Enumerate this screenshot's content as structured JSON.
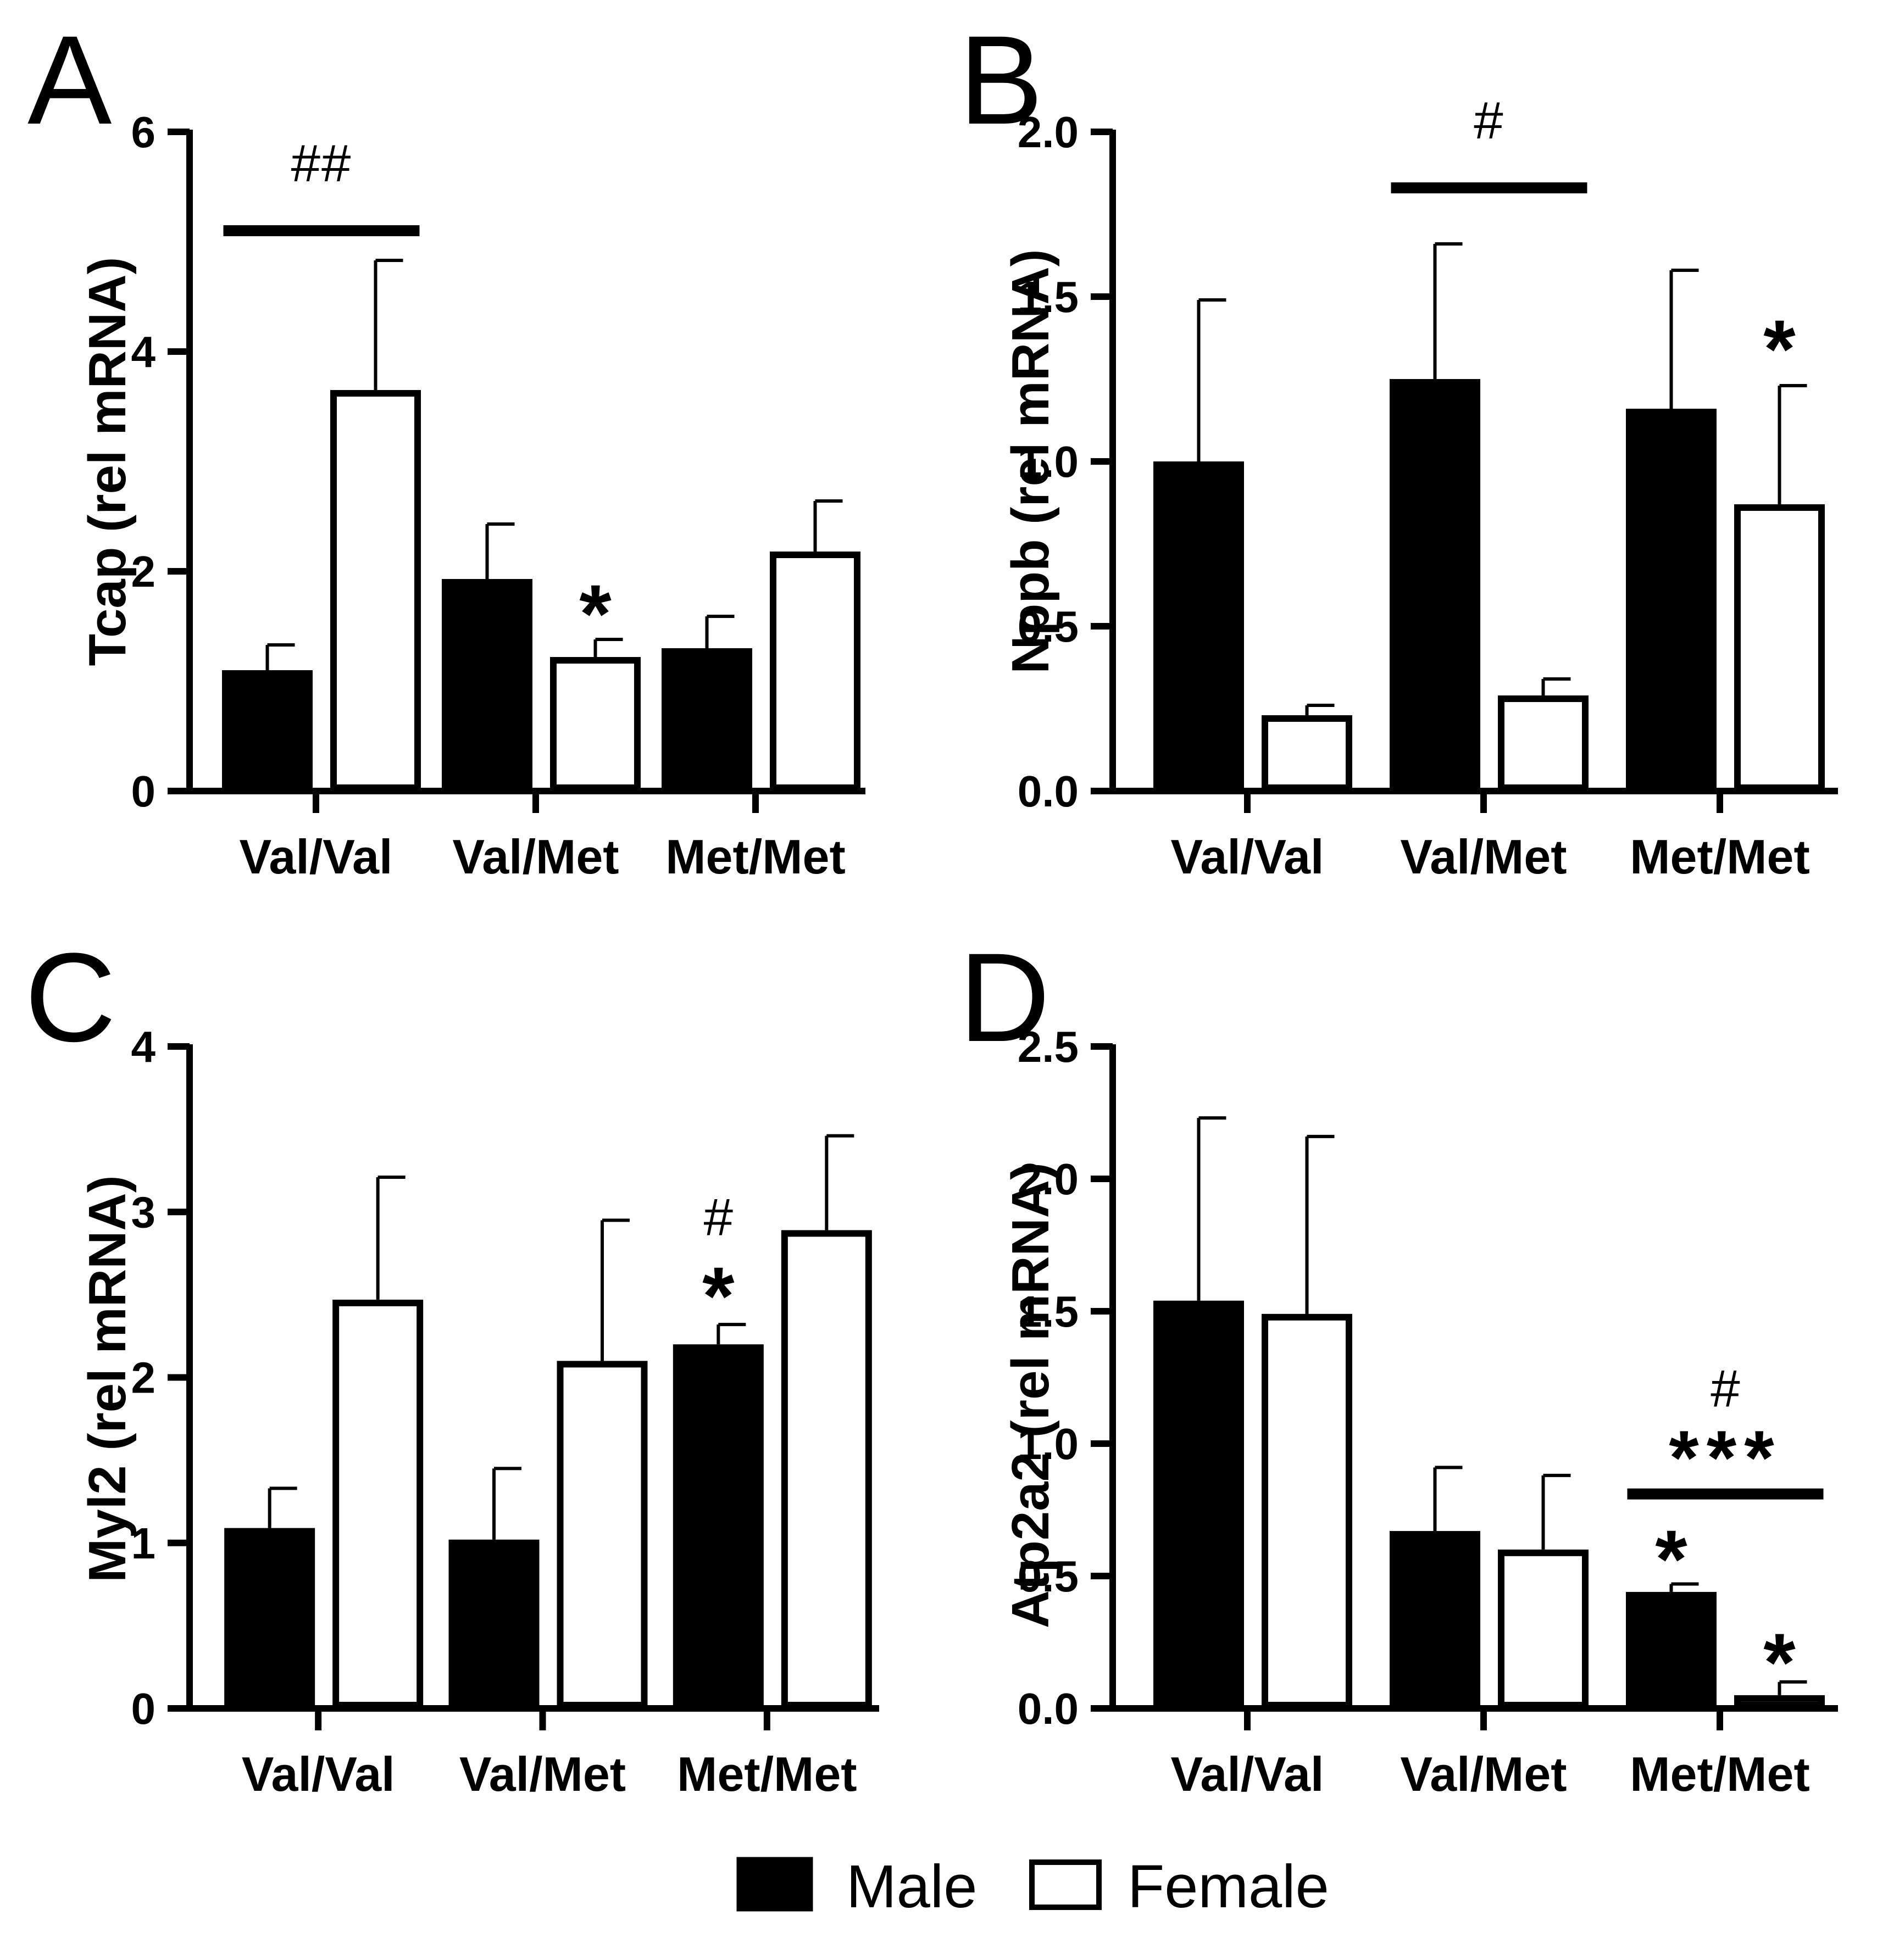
{
  "chart_data": [
    {
      "panel": "A",
      "type": "bar",
      "ylabel": "Tcap (rel mRNA)",
      "ylim": [
        0,
        6
      ],
      "yticks": [
        0,
        2,
        4,
        6
      ],
      "ytick_labels": [
        "0",
        "2",
        "4",
        "6"
      ],
      "categories": [
        "Val/Val",
        "Val/Met",
        "Met/Met"
      ],
      "series": [
        {
          "name": "Male",
          "values": [
            1.1,
            1.93,
            1.3
          ],
          "errors": [
            0.23,
            0.5,
            0.29
          ]
        },
        {
          "name": "Female",
          "values": [
            3.65,
            1.22,
            2.18
          ],
          "errors": [
            1.18,
            0.16,
            0.46
          ]
        }
      ],
      "annotations": [
        {
          "type": "bracket",
          "text": "##",
          "from": [
            0,
            0
          ],
          "to": [
            0,
            1
          ],
          "y": 5.1,
          "text_y": 5.55
        },
        {
          "type": "star",
          "text": "*",
          "category": 1,
          "series": 1,
          "y": 1.58
        }
      ]
    },
    {
      "panel": "B",
      "type": "bar",
      "ylabel": "Nppb (rel mRNA)",
      "ylim": [
        0,
        2.0
      ],
      "yticks": [
        0,
        0.5,
        1.0,
        1.5,
        2.0
      ],
      "ytick_labels": [
        "0.0",
        "0.5",
        "1.0",
        "1.5",
        "2.0"
      ],
      "categories": [
        "Val/Val",
        "Val/Met",
        "Met/Met"
      ],
      "series": [
        {
          "name": "Male",
          "values": [
            1.0,
            1.25,
            1.16
          ],
          "errors": [
            0.49,
            0.41,
            0.42
          ]
        },
        {
          "name": "Female",
          "values": [
            0.23,
            0.29,
            0.87
          ],
          "errors": [
            0.03,
            0.05,
            0.36
          ]
        }
      ],
      "annotations": [
        {
          "type": "bracket",
          "text": "#",
          "from": [
            1,
            0
          ],
          "to": [
            1,
            1
          ],
          "y": 1.83,
          "text_y": 1.98
        },
        {
          "type": "star",
          "text": "*",
          "category": 2,
          "series": 1,
          "y": 1.33
        }
      ]
    },
    {
      "panel": "C",
      "type": "bar",
      "ylabel": "Myl2 (rel mRNA)",
      "ylim": [
        0,
        4
      ],
      "yticks": [
        0,
        1,
        2,
        3,
        4
      ],
      "ytick_labels": [
        "0",
        "1",
        "2",
        "3",
        "4"
      ],
      "categories": [
        "Val/Val",
        "Val/Met",
        "Met/Met"
      ],
      "series": [
        {
          "name": "Male",
          "values": [
            1.09,
            1.02,
            2.2
          ],
          "errors": [
            0.24,
            0.43,
            0.12
          ]
        },
        {
          "name": "Female",
          "values": [
            2.47,
            2.1,
            2.89
          ],
          "errors": [
            0.74,
            0.85,
            0.57
          ]
        }
      ],
      "annotations": [
        {
          "type": "star",
          "text": "*",
          "category": 2,
          "series": 0,
          "y": 2.47
        },
        {
          "type": "hash",
          "text": "#",
          "category": 2,
          "series": 0,
          "y": 2.86
        }
      ]
    },
    {
      "panel": "D",
      "type": "bar",
      "ylabel": "Atp2a2 (rel mRNA)",
      "ylim": [
        0,
        2.5
      ],
      "yticks": [
        0,
        0.5,
        1.0,
        1.5,
        2.0,
        2.5
      ],
      "ytick_labels": [
        "0.0",
        "0.5",
        "1.0",
        "1.5",
        "2.0",
        "2.5"
      ],
      "categories": [
        "Val/Val",
        "Val/Met",
        "Met/Met"
      ],
      "series": [
        {
          "name": "Male",
          "values": [
            1.54,
            0.67,
            0.44
          ],
          "errors": [
            0.69,
            0.24,
            0.03
          ]
        },
        {
          "name": "Female",
          "values": [
            1.49,
            0.6,
            0.05
          ],
          "errors": [
            0.67,
            0.28,
            0.05
          ]
        }
      ],
      "annotations": [
        {
          "type": "star",
          "text": "*",
          "category": 2,
          "series": 0,
          "y": 0.55
        },
        {
          "type": "star",
          "text": "*",
          "category": 2,
          "series": 1,
          "y": 0.16
        },
        {
          "type": "bracket",
          "text": "***",
          "from": [
            2,
            0
          ],
          "to": [
            2,
            1
          ],
          "y": 0.81,
          "text_y": 0.93
        },
        {
          "type": "hash",
          "text": "#",
          "category": 2,
          "series": 0.5,
          "y": 1.14
        }
      ]
    }
  ],
  "legend": {
    "items": [
      {
        "label": "Male",
        "fill": "#000000"
      },
      {
        "label": "Female",
        "fill": "#ffffff"
      }
    ]
  }
}
